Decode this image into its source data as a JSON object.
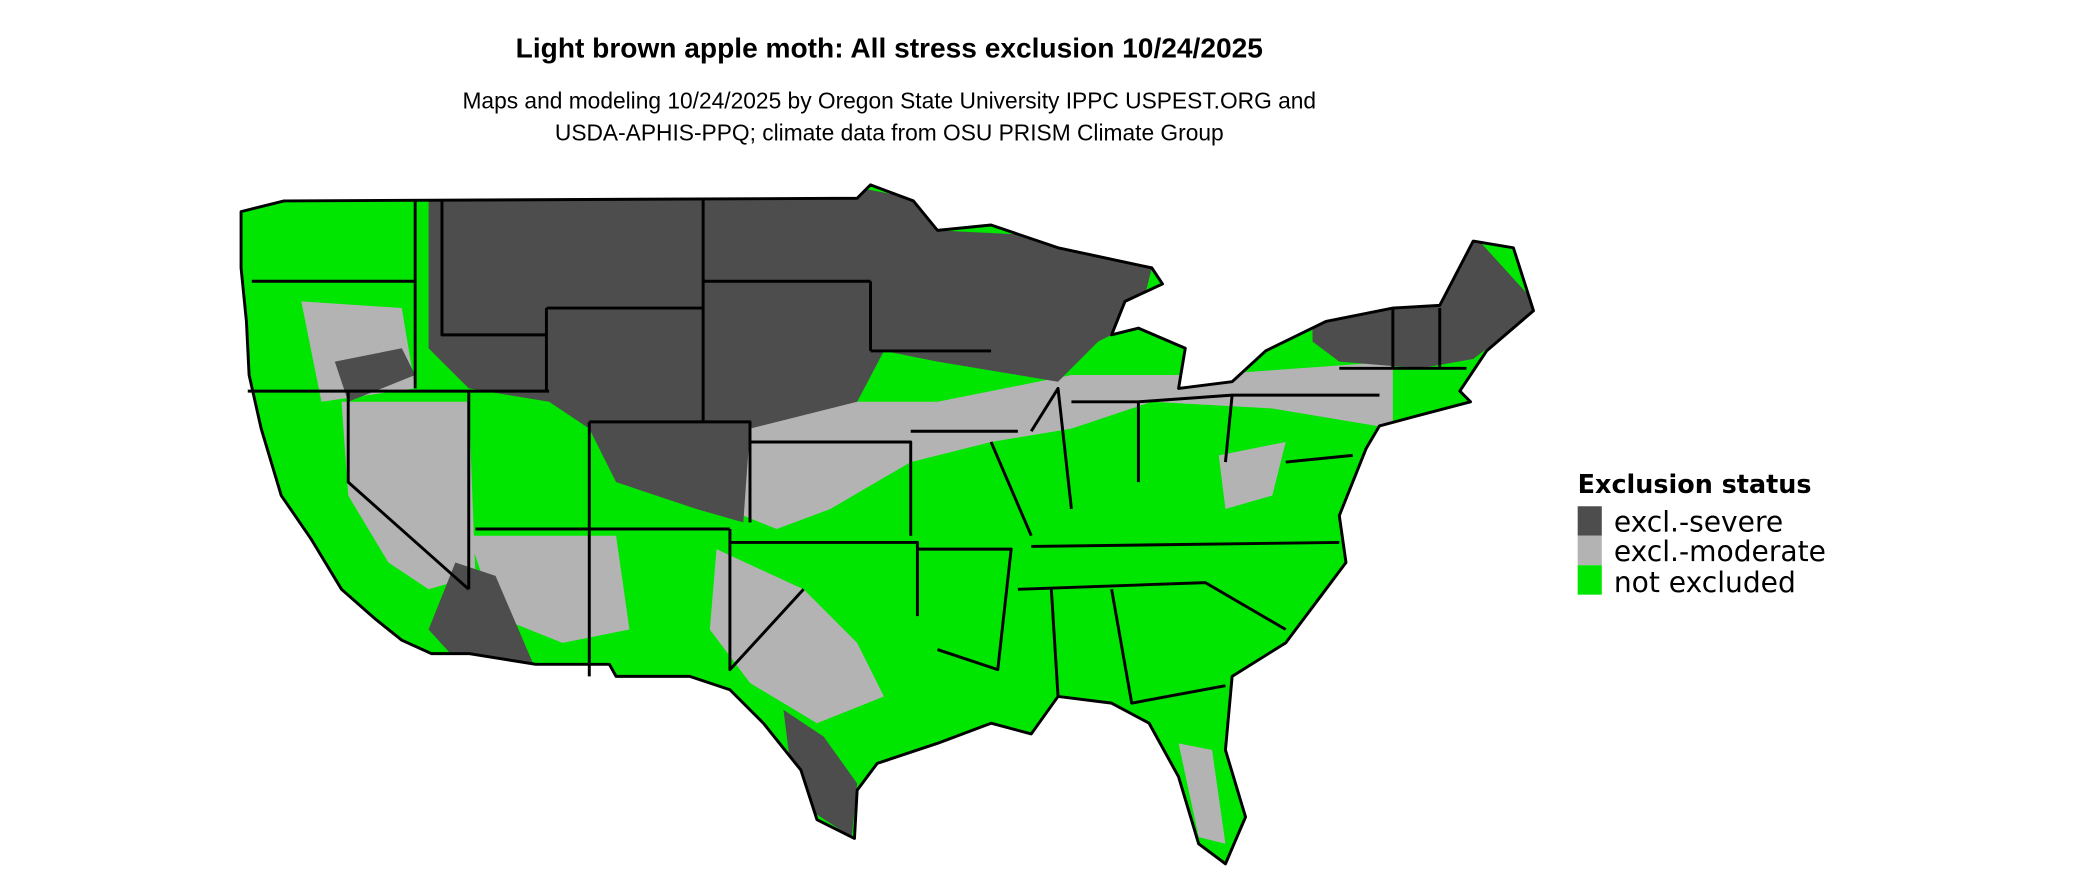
{
  "title": "Light brown apple moth: All stress exclusion 10/24/2025",
  "subtitle_line1": "Maps and modeling 10/24/2025 by Oregon State University IPPC USPEST.ORG and",
  "subtitle_line2": "USDA-APHIS-PPQ; climate data from OSU PRISM Climate Group",
  "legend": {
    "title": "Exclusion status",
    "items": [
      {
        "label": "excl.-severe",
        "color": "#4d4d4d"
      },
      {
        "label": "excl.-moderate",
        "color": "#b3b3b3"
      },
      {
        "label": "not excluded",
        "color": "#00e600"
      }
    ]
  },
  "map": {
    "region": "Contiguous United States",
    "borders": "state boundaries"
  }
}
